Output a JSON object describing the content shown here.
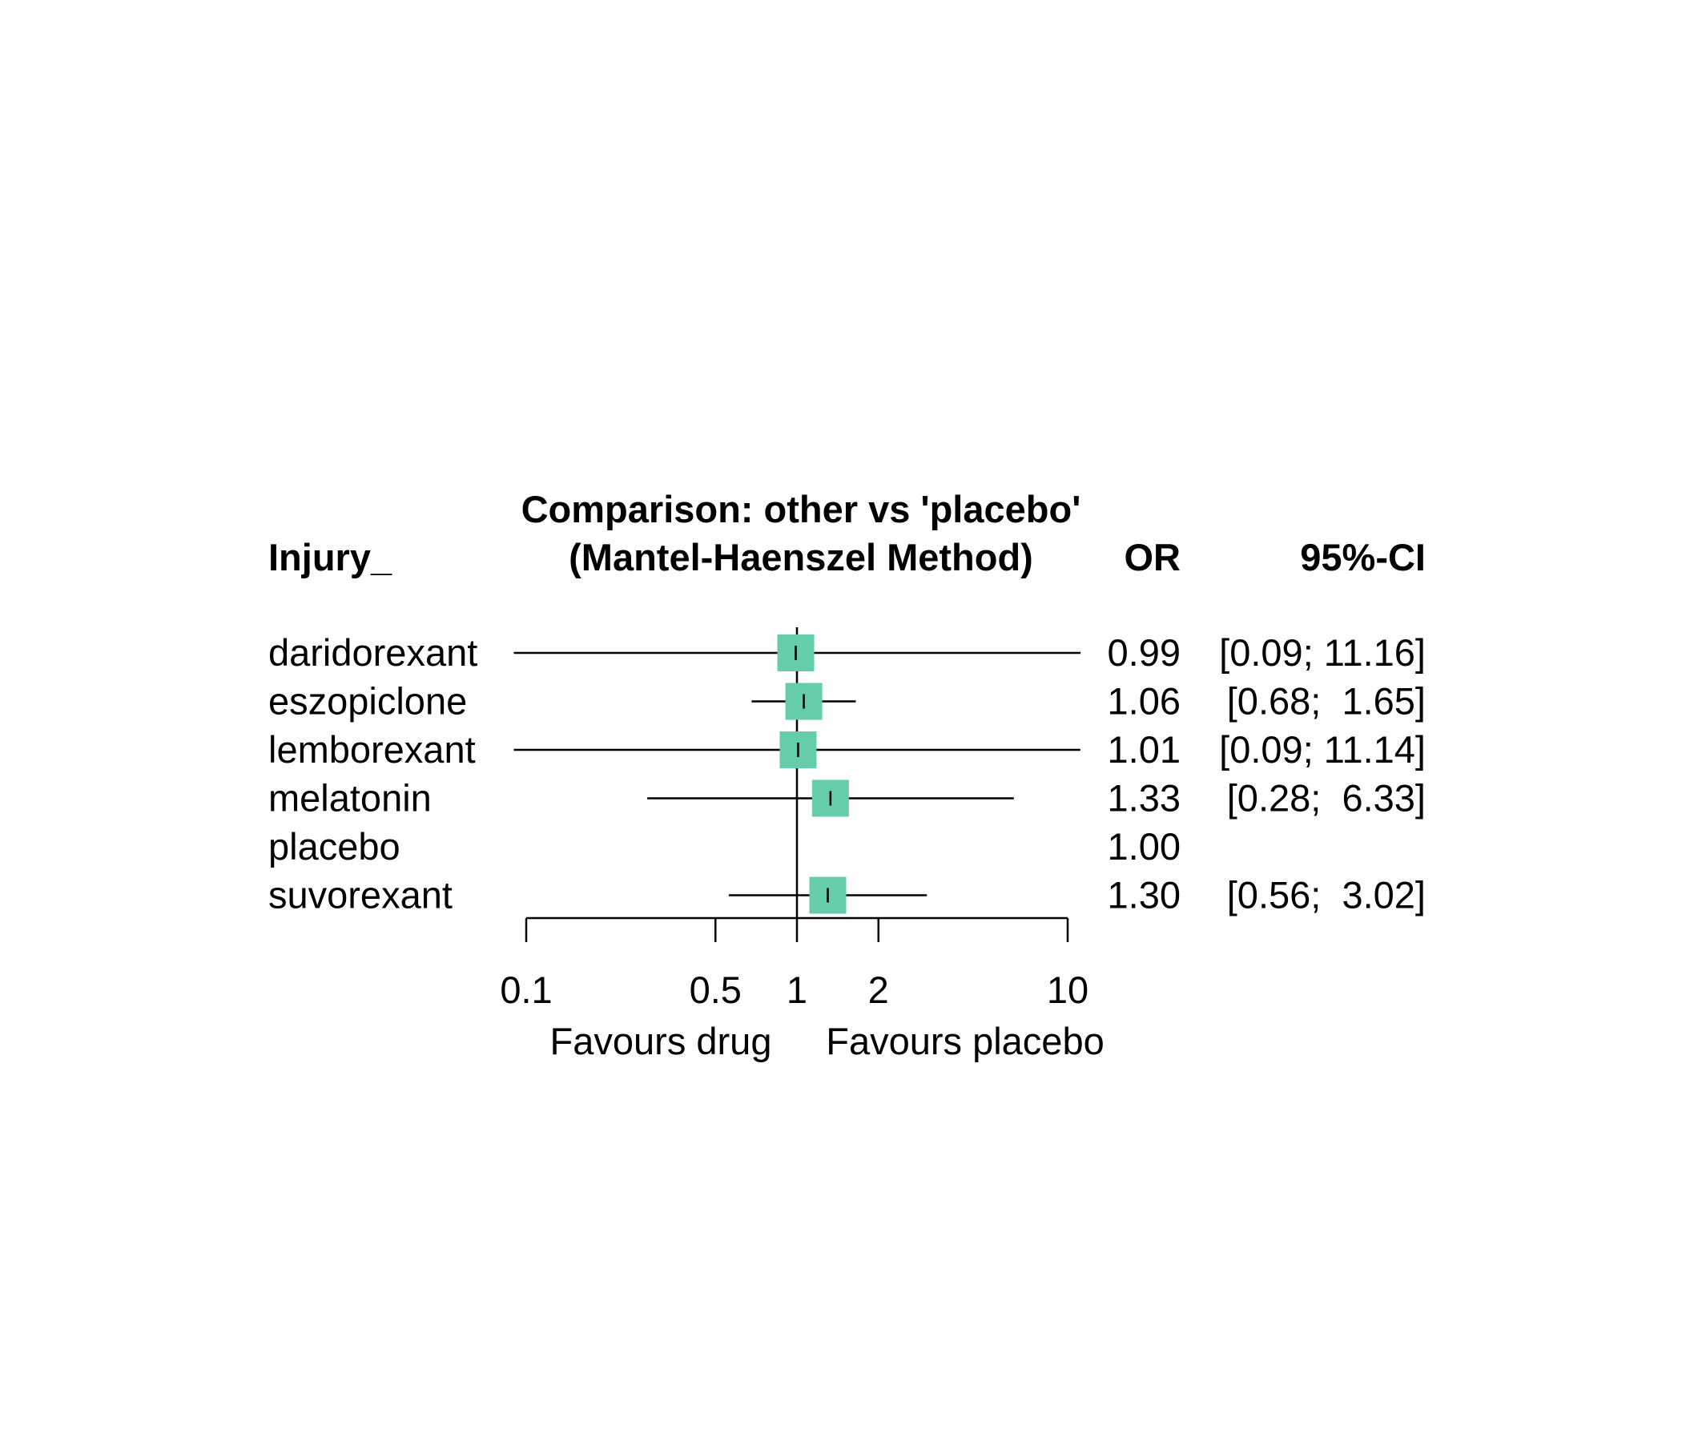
{
  "chart_data": {
    "type": "forest",
    "title_line1": "Comparison: other vs 'placebo'",
    "title_line2": "(Mantel-Haenszel Method)",
    "column_headers": {
      "label": "Injury_",
      "estimate": "OR",
      "ci": "95%-CI"
    },
    "x_scale": "log",
    "xlim": [
      0.1,
      10
    ],
    "reference_line": 1,
    "x_ticks": [
      {
        "value": 0.1,
        "label": "0.1"
      },
      {
        "value": 0.5,
        "label": "0.5"
      },
      {
        "value": 1,
        "label": "1"
      },
      {
        "value": 2,
        "label": "2"
      },
      {
        "value": 10,
        "label": "10"
      }
    ],
    "left_annotation": "Favours drug",
    "right_annotation": "Favours placebo",
    "marker_color": "#66cdaa",
    "rows": [
      {
        "label": "daridorexant",
        "or": 0.99,
        "lower": 0.09,
        "upper": 11.16,
        "or_text": "0.99",
        "ci_text": "[0.09; 11.16]",
        "weight": 1.0
      },
      {
        "label": "eszopiclone",
        "or": 1.06,
        "lower": 0.68,
        "upper": 1.65,
        "or_text": "1.06",
        "ci_text": "[0.68;  1.65]",
        "weight": 1.0
      },
      {
        "label": "lemborexant",
        "or": 1.01,
        "lower": 0.09,
        "upper": 11.14,
        "or_text": "1.01",
        "ci_text": "[0.09; 11.14]",
        "weight": 1.0
      },
      {
        "label": "melatonin",
        "or": 1.33,
        "lower": 0.28,
        "upper": 6.33,
        "or_text": "1.33",
        "ci_text": "[0.28;  6.33]",
        "weight": 1.0
      },
      {
        "label": "placebo",
        "or": 1.0,
        "lower": null,
        "upper": null,
        "or_text": "1.00",
        "ci_text": "",
        "weight": 0
      },
      {
        "label": "suvorexant",
        "or": 1.3,
        "lower": 0.56,
        "upper": 3.02,
        "or_text": "1.30",
        "ci_text": "[0.56;  3.02]",
        "weight": 1.0
      }
    ]
  }
}
